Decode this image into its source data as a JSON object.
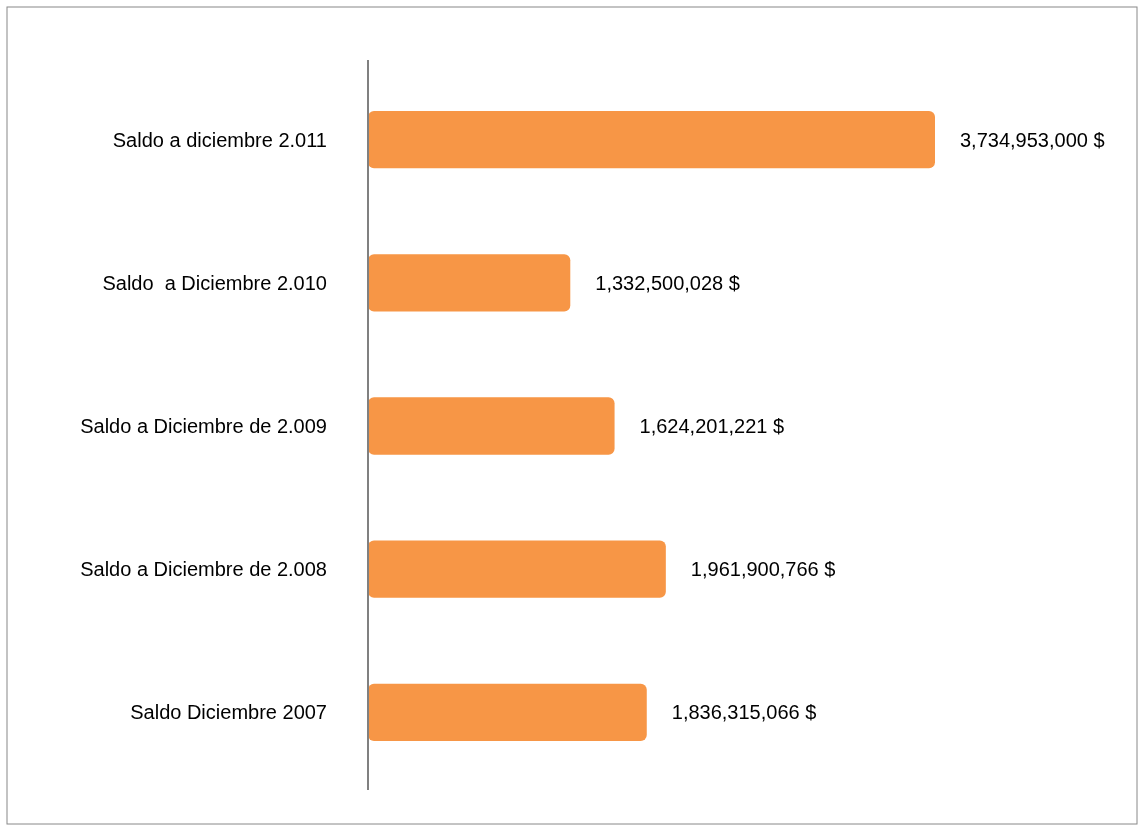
{
  "chart_data": {
    "type": "bar",
    "orientation": "horizontal",
    "categories": [
      "Saldo a diciembre 2.011",
      "Saldo  a Diciembre 2.010",
      "Saldo a Diciembre de 2.009",
      "Saldo a Diciembre de 2.008",
      "Saldo Diciembre 2007"
    ],
    "values": [
      3734953000,
      1332500028,
      1624201221,
      1961900766,
      1836315066
    ],
    "value_labels": [
      "3,734,953,000 $",
      "1,332,500,028 $",
      "1,624,201,221 $",
      "1,961,900,766 $",
      "1,836,315,066 $"
    ],
    "color": "#f79646"
  }
}
